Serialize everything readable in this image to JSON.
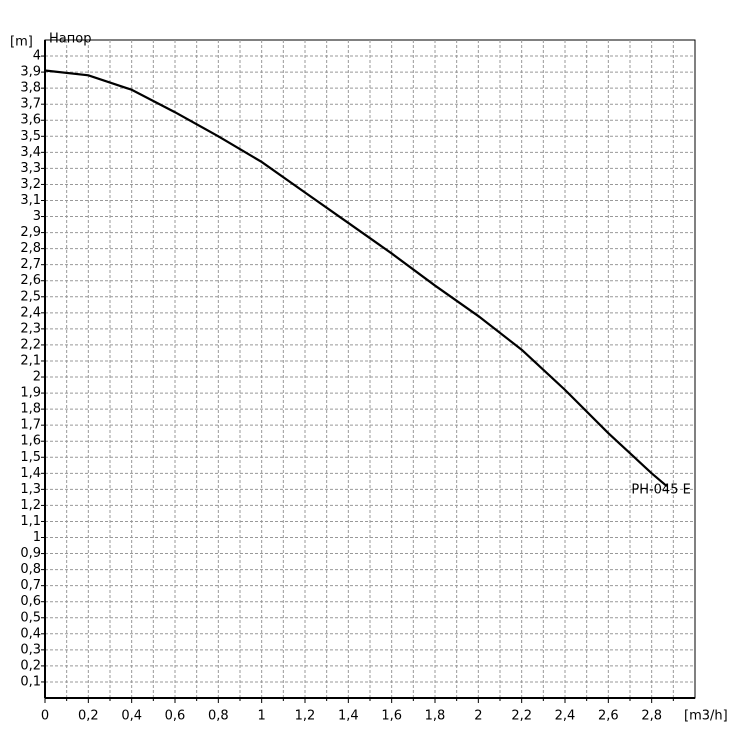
{
  "chart_data": {
    "type": "line",
    "y_label": "[m]",
    "title": "Напор",
    "x_label": "[m3/h]",
    "x": [
      0,
      0.2,
      0.4,
      0.6,
      0.8,
      1.0,
      1.2,
      1.4,
      1.6,
      1.8,
      2.0,
      2.2,
      2.4,
      2.6,
      2.8,
      2.87
    ],
    "series": [
      {
        "name": "PH-045 E",
        "color": "#000000",
        "values": [
          3.91,
          3.88,
          3.79,
          3.65,
          3.5,
          3.34,
          3.15,
          2.96,
          2.77,
          2.57,
          2.38,
          2.17,
          1.92,
          1.65,
          1.4,
          1.32
        ]
      }
    ],
    "xlim": [
      0,
      3
    ],
    "ylim": [
      0,
      4.1
    ],
    "xticks": [
      0,
      {
        "value": 0.2,
        "label": "0,2"
      },
      {
        "value": 0.4,
        "label": "0,4"
      },
      {
        "value": 0.6,
        "label": "0,6"
      },
      {
        "value": 0.8,
        "label": "0,8"
      },
      1,
      {
        "value": 1.2,
        "label": "1,2"
      },
      {
        "value": 1.4,
        "label": "1,4"
      },
      {
        "value": 1.6,
        "label": "1,6"
      },
      {
        "value": 1.8,
        "label": "1,8"
      },
      2,
      {
        "value": 2.2,
        "label": "2,2"
      },
      {
        "value": 2.4,
        "label": "2,4"
      },
      {
        "value": 2.6,
        "label": "2,6"
      },
      {
        "value": 2.8,
        "label": "2,8"
      }
    ],
    "yticks": [
      {
        "value": 0.1,
        "label": "0,1"
      },
      {
        "value": 0.2,
        "label": "0,2"
      },
      {
        "value": 0.3,
        "label": "0,3"
      },
      {
        "value": 0.4,
        "label": "0,4"
      },
      {
        "value": 0.5,
        "label": "0,5"
      },
      {
        "value": 0.6,
        "label": "0,6"
      },
      {
        "value": 0.7,
        "label": "0,7"
      },
      {
        "value": 0.8,
        "label": "0,8"
      },
      {
        "value": 0.9,
        "label": "0,9"
      },
      1,
      {
        "value": 1.1,
        "label": "1,1"
      },
      {
        "value": 1.2,
        "label": "1,2"
      },
      {
        "value": 1.3,
        "label": "1,3"
      },
      {
        "value": 1.4,
        "label": "1,4"
      },
      {
        "value": 1.5,
        "label": "1,5"
      },
      {
        "value": 1.6,
        "label": "1,6"
      },
      {
        "value": 1.7,
        "label": "1,7"
      },
      {
        "value": 1.8,
        "label": "1,8"
      },
      {
        "value": 1.9,
        "label": "1,9"
      },
      2,
      {
        "value": 2.1,
        "label": "2,1"
      },
      {
        "value": 2.2,
        "label": "2,2"
      },
      {
        "value": 2.3,
        "label": "2,3"
      },
      {
        "value": 2.4,
        "label": "2,4"
      },
      {
        "value": 2.5,
        "label": "2,5"
      },
      {
        "value": 2.6,
        "label": "2,6"
      },
      {
        "value": 2.7,
        "label": "2,7"
      },
      {
        "value": 2.8,
        "label": "2,8"
      },
      {
        "value": 2.9,
        "label": "2,9"
      },
      3,
      {
        "value": 3.1,
        "label": "3,1"
      },
      {
        "value": 3.2,
        "label": "3,2"
      },
      {
        "value": 3.3,
        "label": "3,3"
      },
      {
        "value": 3.4,
        "label": "3,4"
      },
      {
        "value": 3.5,
        "label": "3,5"
      },
      {
        "value": 3.6,
        "label": "3,6"
      },
      {
        "value": 3.7,
        "label": "3,7"
      },
      {
        "value": 3.8,
        "label": "3,8"
      },
      {
        "value": 3.9,
        "label": "3,9"
      },
      4
    ],
    "grid": true
  }
}
